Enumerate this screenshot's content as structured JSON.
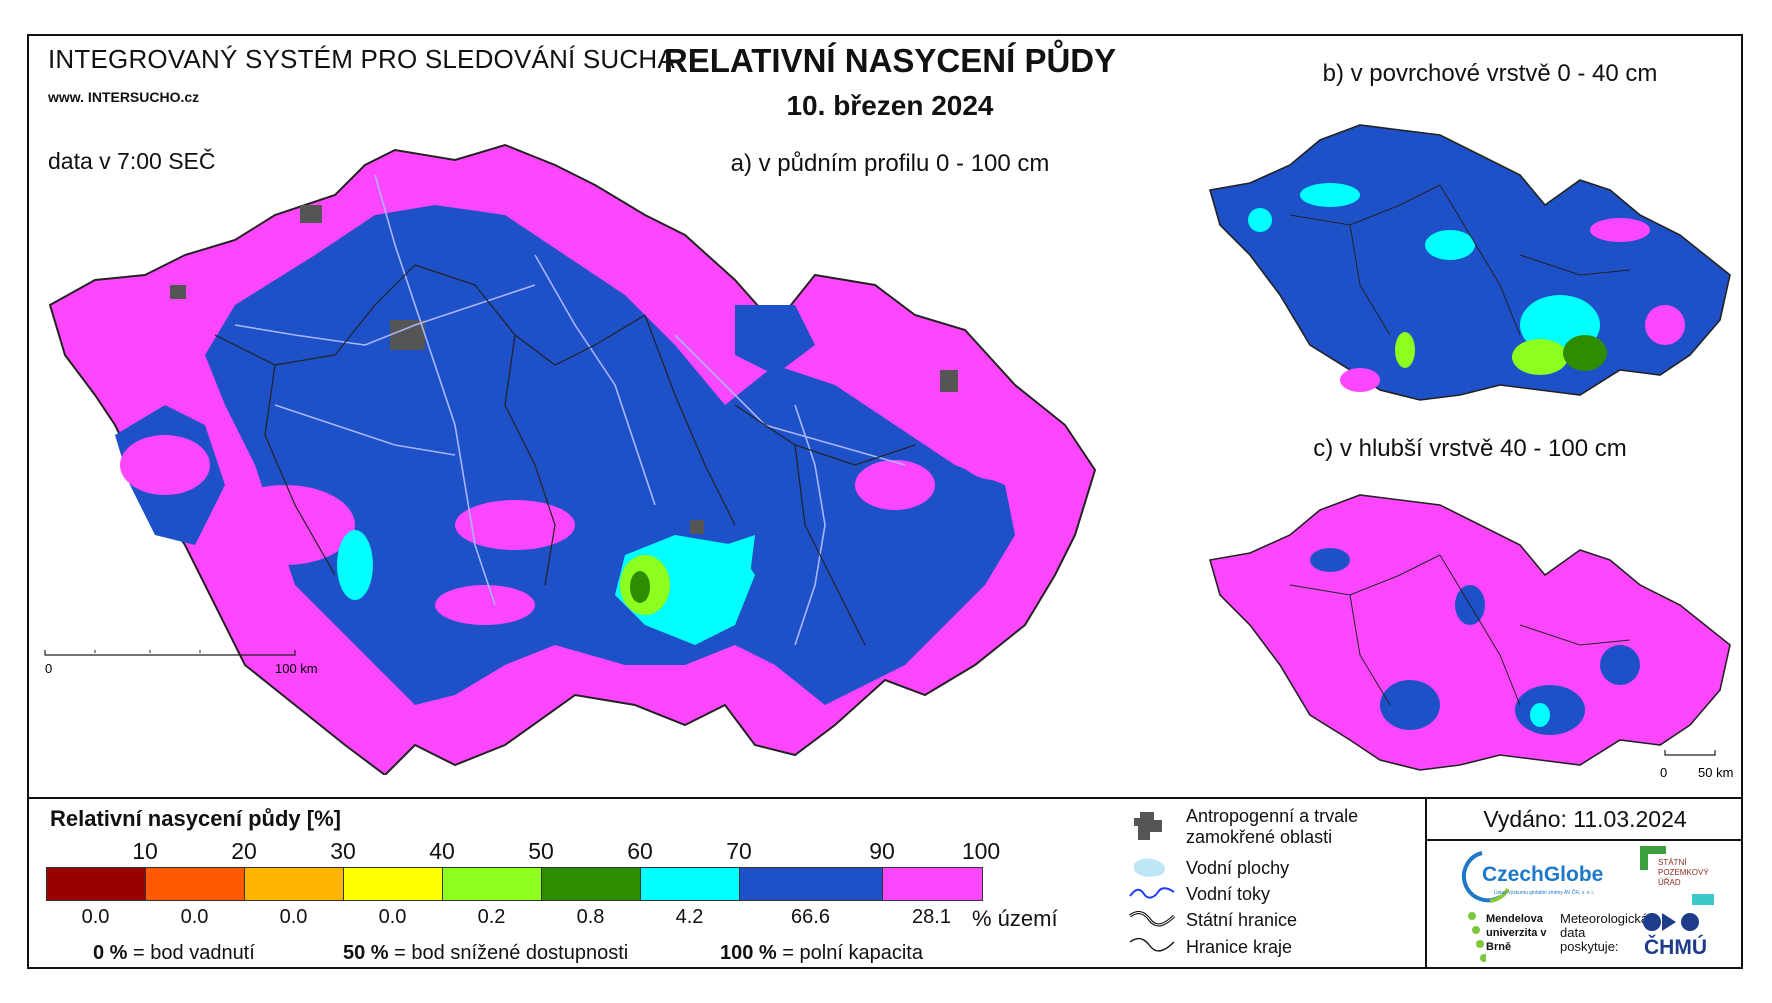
{
  "header": {
    "system": "INTEGROVANÝ SYSTÉM PRO SLEDOVÁNÍ SUCHA",
    "www": "www. INTERSUCHO.cz",
    "data_time": "data v 7:00 SEČ",
    "title": "RELATIVNÍ NASYCENÍ PŮDY",
    "date": "10. březen 2024"
  },
  "maps": {
    "a_label": "a) v půdním profilu 0 - 100 cm",
    "b_label": "b) v povrchové vrstvě 0 - 40 cm",
    "c_label": "c) v hlubší vrstvě 40 - 100 cm",
    "scale_a": {
      "start": "0",
      "end": "100 km"
    },
    "scale_c": {
      "start": "0",
      "end": "50 km"
    }
  },
  "legend": {
    "title": "Relativní nasycení půdy [%]",
    "ticks": [
      "10",
      "20",
      "30",
      "40",
      "50",
      "60",
      "70",
      "90",
      "100"
    ],
    "classes": [
      {
        "color": "#9b0000",
        "share": "0.0"
      },
      {
        "color": "#ff5a00",
        "share": "0.0"
      },
      {
        "color": "#ffb400",
        "share": "0.0"
      },
      {
        "color": "#ffff00",
        "share": "0.0"
      },
      {
        "color": "#8cff1e",
        "share": "0.2"
      },
      {
        "color": "#2d8c00",
        "share": "0.8"
      },
      {
        "color": "#00ffff",
        "share": "4.2"
      },
      {
        "color": "#1e50c8",
        "share": "66.6"
      },
      {
        "color": "#ff46ff",
        "share": "28.1"
      }
    ],
    "unit": "% území",
    "footnotes": [
      {
        "value": "0 %",
        "text": "= bod vadnutí"
      },
      {
        "value": "50 %",
        "text": "= bod snížené dostupnosti"
      },
      {
        "value": "100 %",
        "text": "= polní kapacita"
      }
    ]
  },
  "symbols": {
    "anthropogenic": "Antropogenní a trvale zamokřené oblasti",
    "water_bodies": "Vodní plochy",
    "water_courses": "Vodní toky",
    "state_border": "Státní hranice",
    "region_border": "Hranice kraje"
  },
  "issued": "Vydáno: 11.03.2024",
  "logos": {
    "czechglobe": "CzechGlobe",
    "czechglobe_sub": "Ústav výzkumu globální změny AV ČR, v. v. i.",
    "spu": "STÁTNÍ POZEMKOVÝ ÚŘAD",
    "mendelu": "Mendelova univerzita v Brně",
    "meteo": "Meteorologická data poskytuje:",
    "chmu": "ČHMÚ"
  },
  "colors": {
    "magenta": "#ff46ff",
    "blue": "#1e50c8",
    "cyan": "#00ffff",
    "green": "#8cff1e",
    "dark_green": "#2d8c00",
    "gray_urban": "#555555",
    "river": "#a8b4ff"
  }
}
